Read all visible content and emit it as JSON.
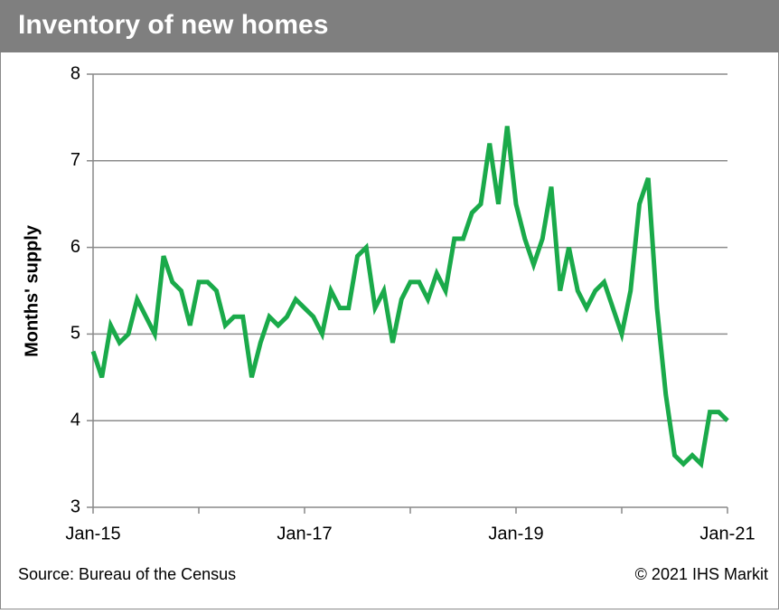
{
  "chart_data": {
    "type": "line",
    "title": "Inventory of new homes",
    "y_label": "Months' supply",
    "source": "Source:  Bureau of the Census",
    "copyright": "© 2021 IHS Markit",
    "categories": [
      "Jan-15",
      null,
      null,
      null,
      null,
      null,
      null,
      null,
      null,
      null,
      null,
      null,
      null,
      null,
      null,
      null,
      null,
      null,
      null,
      null,
      null,
      null,
      null,
      null,
      "Jan-17",
      null,
      null,
      null,
      null,
      null,
      null,
      null,
      null,
      null,
      null,
      null,
      null,
      null,
      null,
      null,
      null,
      null,
      null,
      null,
      null,
      null,
      null,
      null,
      "Jan-19",
      null,
      null,
      null,
      null,
      null,
      null,
      null,
      null,
      null,
      null,
      null,
      null,
      null,
      null,
      null,
      null,
      null,
      null,
      null,
      null,
      null,
      null,
      null,
      "Jan-21"
    ],
    "series": [
      {
        "name": "Months' supply",
        "color": "#1aaa4a",
        "values": [
          4.8,
          4.5,
          5.1,
          4.9,
          5.0,
          5.4,
          5.2,
          5.0,
          5.9,
          5.6,
          5.5,
          5.1,
          5.6,
          5.6,
          5.5,
          5.1,
          5.2,
          5.2,
          4.5,
          4.9,
          5.2,
          5.1,
          5.2,
          5.4,
          5.3,
          5.2,
          5.0,
          5.5,
          5.3,
          5.3,
          5.9,
          6.0,
          5.3,
          5.5,
          4.9,
          5.4,
          5.6,
          5.6,
          5.4,
          5.7,
          5.5,
          6.1,
          6.1,
          6.4,
          6.5,
          7.2,
          6.5,
          7.4,
          6.5,
          6.1,
          5.8,
          6.1,
          6.7,
          5.5,
          6.0,
          5.5,
          5.3,
          5.5,
          5.6,
          5.3,
          5.0,
          5.5,
          6.5,
          6.8,
          5.3,
          4.3,
          3.6,
          3.5,
          3.6,
          3.5,
          4.1,
          4.1,
          4.0
        ]
      }
    ],
    "ylim": [
      3,
      8
    ],
    "yticks": [
      3,
      4,
      5,
      6,
      7,
      8
    ],
    "grid": true
  }
}
